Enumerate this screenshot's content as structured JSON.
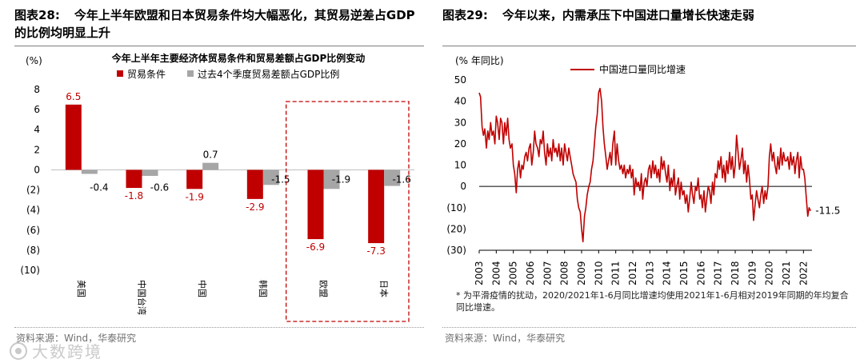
{
  "left": {
    "figure_label": "图表28:",
    "figure_title": "今年上半年欧盟和日本贸易条件均大幅恶化，其贸易逆差占GDP 的比例均明显上升",
    "source": "资料来源：Wind，华泰研究"
  },
  "right": {
    "figure_label": "图表29:",
    "figure_title": "今年以来，内需承压下中国进口量增长快速走弱",
    "source": "资料来源：Wind，华泰研究",
    "footnote": "* 为平滑疫情的扰动，2020/2021年1-6月同比增速均使用2021年1-6月相对2019年同期的年均复合同比增速。"
  },
  "watermark": "大数跨境",
  "colors": {
    "red": "#c00000",
    "gray": "#a6a6a6",
    "highlight_border": "#c00000"
  },
  "chart_data": [
    {
      "type": "bar",
      "title": "今年上半年主要经济体贸易条件和贸易差额占GDP比例变动",
      "unit_label": "(%)",
      "categories": [
        "美国",
        "中国台湾",
        "中国",
        "韩国",
        "欧盟",
        "日本"
      ],
      "series": [
        {
          "name": "贸易条件",
          "color": "#c00000",
          "values": [
            6.5,
            -1.8,
            -1.9,
            -2.9,
            -6.9,
            -7.3
          ],
          "labels": [
            "6.5",
            "-1.8",
            "-1.9",
            "-2.9",
            "-6.9",
            "-7.3"
          ]
        },
        {
          "name": "过去4个季度贸易差额占GDP比例",
          "color": "#a6a6a6",
          "values": [
            -0.4,
            -0.6,
            0.7,
            -1.5,
            -1.9,
            -1.6
          ],
          "labels": [
            "-0.4",
            "-0.6",
            "0.7",
            "-1.5",
            "-1.9",
            "-1.6"
          ]
        }
      ],
      "ylim": [
        -10,
        8
      ],
      "yticks": [
        8,
        6,
        4,
        2,
        0,
        -2,
        -4,
        -6,
        -8,
        -10
      ],
      "ytick_labels": [
        "8",
        "6",
        "4",
        "2",
        "0",
        "(2)",
        "(4)",
        "(6)",
        "(8)",
        "(10)"
      ],
      "highlighted_categories": [
        "欧盟",
        "日本"
      ]
    },
    {
      "type": "line",
      "title": "",
      "unit_label": "(% 年同比)",
      "legend": "中国进口量同比增速",
      "color": "#c00000",
      "ylim": [
        -30,
        50
      ],
      "yticks": [
        50,
        40,
        30,
        20,
        10,
        0,
        -10,
        -20,
        -30
      ],
      "ytick_labels": [
        "50",
        "40",
        "30",
        "20",
        "10",
        "0",
        "(10)",
        "(20)",
        "(30)"
      ],
      "xtick_labels": [
        "2003",
        "2004",
        "2005",
        "2006",
        "2007",
        "2008",
        "2009",
        "2010",
        "2011",
        "2012",
        "2013",
        "2014",
        "2015",
        "2016",
        "2017",
        "2018",
        "2019",
        "2020",
        "2021",
        "2022"
      ],
      "last_value_label": "-11.5",
      "x": [
        2003.0,
        2003.08,
        2003.17,
        2003.25,
        2003.33,
        2003.42,
        2003.5,
        2003.58,
        2003.67,
        2003.75,
        2003.83,
        2003.92,
        2004.0,
        2004.08,
        2004.17,
        2004.25,
        2004.33,
        2004.42,
        2004.5,
        2004.58,
        2004.67,
        2004.75,
        2004.83,
        2004.92,
        2005.0,
        2005.08,
        2005.17,
        2005.25,
        2005.33,
        2005.42,
        2005.5,
        2005.58,
        2005.67,
        2005.75,
        2005.83,
        2005.92,
        2006.0,
        2006.08,
        2006.17,
        2006.25,
        2006.33,
        2006.42,
        2006.5,
        2006.58,
        2006.67,
        2006.75,
        2006.83,
        2006.92,
        2007.0,
        2007.08,
        2007.17,
        2007.25,
        2007.33,
        2007.42,
        2007.5,
        2007.58,
        2007.67,
        2007.75,
        2007.83,
        2007.92,
        2008.0,
        2008.08,
        2008.17,
        2008.25,
        2008.33,
        2008.42,
        2008.5,
        2008.58,
        2008.67,
        2008.75,
        2008.83,
        2008.92,
        2009.0,
        2009.08,
        2009.17,
        2009.25,
        2009.33,
        2009.42,
        2009.5,
        2009.58,
        2009.67,
        2009.75,
        2009.83,
        2009.92,
        2010.0,
        2010.08,
        2010.17,
        2010.25,
        2010.33,
        2010.42,
        2010.5,
        2010.58,
        2010.67,
        2010.75,
        2010.83,
        2010.92,
        2011.0,
        2011.08,
        2011.17,
        2011.25,
        2011.33,
        2011.42,
        2011.5,
        2011.58,
        2011.67,
        2011.75,
        2011.83,
        2011.92,
        2012.0,
        2012.08,
        2012.17,
        2012.25,
        2012.33,
        2012.42,
        2012.5,
        2012.58,
        2012.67,
        2012.75,
        2012.83,
        2012.92,
        2013.0,
        2013.08,
        2013.17,
        2013.25,
        2013.33,
        2013.42,
        2013.5,
        2013.58,
        2013.67,
        2013.75,
        2013.83,
        2013.92,
        2014.0,
        2014.08,
        2014.17,
        2014.25,
        2014.33,
        2014.42,
        2014.5,
        2014.58,
        2014.67,
        2014.75,
        2014.83,
        2014.92,
        2015.0,
        2015.08,
        2015.17,
        2015.25,
        2015.33,
        2015.42,
        2015.5,
        2015.58,
        2015.67,
        2015.75,
        2015.83,
        2015.92,
        2016.0,
        2016.08,
        2016.17,
        2016.25,
        2016.33,
        2016.42,
        2016.5,
        2016.58,
        2016.67,
        2016.75,
        2016.83,
        2016.92,
        2017.0,
        2017.08,
        2017.17,
        2017.25,
        2017.33,
        2017.42,
        2017.5,
        2017.58,
        2017.67,
        2017.75,
        2017.83,
        2017.92,
        2018.0,
        2018.08,
        2018.17,
        2018.25,
        2018.33,
        2018.42,
        2018.5,
        2018.58,
        2018.67,
        2018.75,
        2018.83,
        2018.92,
        2019.0,
        2019.08,
        2019.17,
        2019.25,
        2019.33,
        2019.42,
        2019.5,
        2019.58,
        2019.67,
        2019.75,
        2019.83,
        2019.92,
        2020.0,
        2020.08,
        2020.17,
        2020.25,
        2020.33,
        2020.42,
        2020.5,
        2020.58,
        2020.67,
        2020.75,
        2020.83,
        2020.92,
        2021.0,
        2021.08,
        2021.17,
        2021.25,
        2021.33,
        2021.42,
        2021.5,
        2021.58,
        2021.67,
        2021.75,
        2021.83,
        2021.92,
        2022.0,
        2022.08,
        2022.17,
        2022.25,
        2022.33,
        2022.42
      ],
      "values": [
        44,
        42,
        28,
        24,
        27,
        18,
        26,
        22,
        30,
        24,
        26,
        20,
        33,
        30,
        22,
        32,
        30,
        20,
        30,
        24,
        32,
        22,
        18,
        20,
        10,
        6,
        -3,
        8,
        12,
        4,
        10,
        8,
        14,
        16,
        12,
        18,
        20,
        10,
        16,
        26,
        20,
        18,
        14,
        22,
        20,
        26,
        16,
        10,
        20,
        14,
        18,
        12,
        22,
        16,
        18,
        14,
        20,
        12,
        18,
        10,
        20,
        16,
        12,
        18,
        14,
        10,
        6,
        4,
        2,
        -6,
        -10,
        -12,
        -20,
        -26,
        -14,
        -10,
        -4,
        0,
        2,
        8,
        12,
        20,
        28,
        34,
        44,
        46,
        40,
        28,
        20,
        14,
        8,
        12,
        16,
        10,
        20,
        26,
        10,
        20,
        12,
        8,
        10,
        6,
        10,
        4,
        8,
        6,
        10,
        4,
        8,
        -4,
        4,
        0,
        2,
        -2,
        6,
        -6,
        2,
        4,
        0,
        8,
        10,
        4,
        12,
        6,
        10,
        4,
        8,
        2,
        14,
        8,
        12,
        6,
        2,
        10,
        -2,
        4,
        0,
        8,
        -4,
        0,
        4,
        -6,
        2,
        -4,
        -2,
        -8,
        -4,
        -12,
        -6,
        2,
        -4,
        -8,
        0,
        -2,
        4,
        -6,
        -4,
        -10,
        -2,
        -12,
        -6,
        0,
        -2,
        -8,
        2,
        -4,
        6,
        4,
        12,
        8,
        14,
        4,
        10,
        2,
        12,
        6,
        16,
        8,
        14,
        4,
        10,
        24,
        16,
        8,
        12,
        18,
        6,
        12,
        2,
        10,
        4,
        -6,
        -4,
        -16,
        -8,
        -2,
        -6,
        -10,
        -4,
        0,
        -8,
        -2,
        -6,
        0,
        14,
        20,
        12,
        16,
        10,
        6,
        14,
        8,
        18,
        10,
        16,
        12,
        12,
        14,
        8,
        16,
        10,
        14,
        6,
        12,
        16,
        4,
        14,
        8,
        8,
        4,
        -6,
        -14,
        -10,
        -11.5
      ]
    }
  ]
}
